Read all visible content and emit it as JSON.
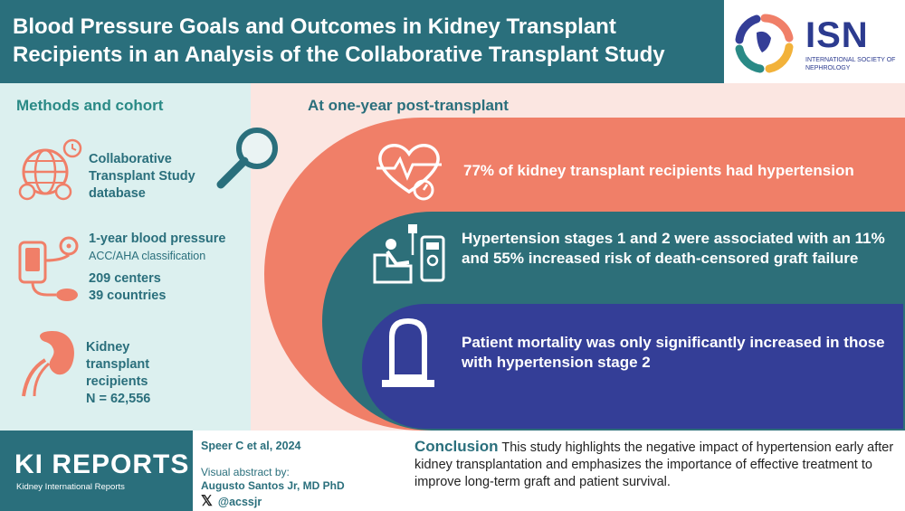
{
  "header": {
    "title": "Blood Pressure Goals and Outcomes in Kidney Transplant Recipients in an Analysis of the Collaborative Transplant Study"
  },
  "logo": {
    "name": "ISN",
    "subtitle": "INTERNATIONAL SOCIETY OF NEPHROLOGY"
  },
  "methods": {
    "heading": "Methods and cohort",
    "database": "Collaborative Transplant Study database",
    "bp_title": "1-year blood pressure",
    "bp_class": "ACC/AHA classification",
    "centers": "209 centers",
    "countries": "39 countries",
    "recipients": "Kidney transplant recipients",
    "n": "N = 62,556"
  },
  "results": {
    "heading": "At one-year post-transplant",
    "finding1": "77% of kidney transplant recipients had hypertension",
    "finding2": "Hypertension stages 1 and 2 were associated with an 11% and 55% increased risk of death-censored graft failure",
    "finding3": "Patient mortality was only significantly increased in those with hypertension stage 2"
  },
  "footer": {
    "journal": "KI REPORTS",
    "journal_sub": "Kidney International Reports",
    "citation": "Speer C et al, 2024",
    "va_label": "Visual abstract by:",
    "va_author": "Augusto Santos Jr, MD PhD",
    "handle": "@acssjr",
    "conclusion_label": "Conclusion",
    "conclusion_text": "This study highlights the negative impact of hypertension early after kidney transplantation and emphasizes the importance of effective treatment to improve long-term graft and patient survival."
  },
  "colors": {
    "teal": "#2a6f7c",
    "coral": "#f07f68",
    "navy": "#343e97",
    "mint": "#dcf0ef"
  }
}
